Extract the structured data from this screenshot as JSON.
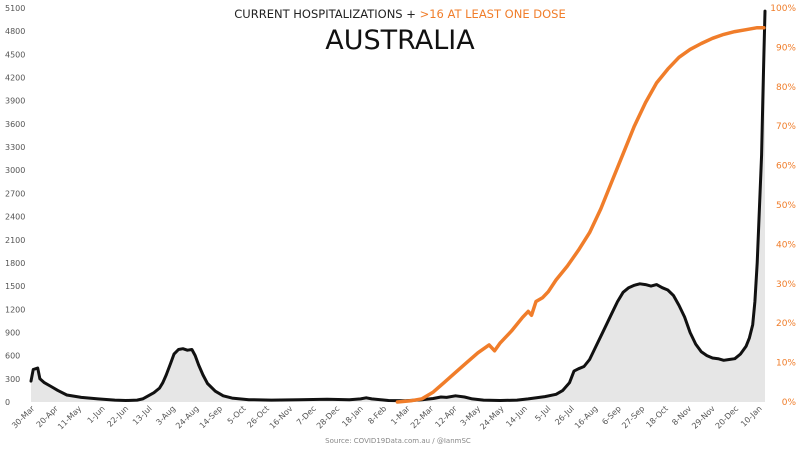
{
  "chart_data": {
    "type": "line",
    "title_part1": "CURRENT HOSPITALIZATIONS + ",
    "title_part2": ">16 AT LEAST ONE DOSE",
    "subtitle": "AUSTRALIA",
    "source": "Source: COVID19Data.com.au / @IanmSC",
    "x_tick_labels": [
      "30-Mar",
      "20-Apr",
      "11-May",
      "1-Jun",
      "22-Jun",
      "13-Jul",
      "3-Aug",
      "24-Aug",
      "14-Sep",
      "5-Oct",
      "26-Oct",
      "16-Nov",
      "7-Dec",
      "28-Dec",
      "18-Jan",
      "8-Feb",
      "1-Mar",
      "22-Mar",
      "12-Apr",
      "3-May",
      "24-May",
      "14-Jun",
      "5-Jul",
      "26-Jul",
      "16-Aug",
      "6-Sep",
      "27-Sep",
      "18-Oct",
      "8-Nov",
      "29-Nov",
      "20-Dec",
      "10-Jan"
    ],
    "x_tick_step_days": 21,
    "x_last_day": 657,
    "y_left": {
      "min": 0,
      "max": 5100,
      "step": 300,
      "ticks": [
        0,
        300,
        600,
        900,
        1200,
        1500,
        1800,
        2100,
        2400,
        2700,
        3000,
        3300,
        3600,
        3900,
        4200,
        4500,
        4800,
        5100
      ]
    },
    "y_right": {
      "min": 0,
      "max": 100,
      "ticks": [
        "0%",
        "10%",
        "20%",
        "30%",
        "40%",
        "50%",
        "60%",
        "70%",
        "80%",
        "90%",
        "100%"
      ]
    },
    "grid": false,
    "colors": {
      "hospital": "#111111",
      "area": "#e6e6e6",
      "dose": "#f07d2a"
    },
    "series": [
      {
        "name": "CURRENT HOSPITALIZATIONS",
        "axis": "left",
        "points": [
          [
            0,
            270
          ],
          [
            2,
            420
          ],
          [
            6,
            440
          ],
          [
            8,
            300
          ],
          [
            12,
            250
          ],
          [
            18,
            200
          ],
          [
            24,
            150
          ],
          [
            32,
            90
          ],
          [
            45,
            60
          ],
          [
            60,
            40
          ],
          [
            75,
            25
          ],
          [
            85,
            20
          ],
          [
            95,
            25
          ],
          [
            100,
            40
          ],
          [
            105,
            80
          ],
          [
            110,
            120
          ],
          [
            115,
            180
          ],
          [
            118,
            250
          ],
          [
            121,
            350
          ],
          [
            125,
            500
          ],
          [
            128,
            620
          ],
          [
            132,
            680
          ],
          [
            136,
            690
          ],
          [
            140,
            670
          ],
          [
            144,
            680
          ],
          [
            147,
            600
          ],
          [
            150,
            480
          ],
          [
            154,
            350
          ],
          [
            158,
            240
          ],
          [
            165,
            140
          ],
          [
            172,
            80
          ],
          [
            180,
            50
          ],
          [
            195,
            30
          ],
          [
            215,
            25
          ],
          [
            240,
            30
          ],
          [
            265,
            35
          ],
          [
            285,
            30
          ],
          [
            295,
            40
          ],
          [
            300,
            55
          ],
          [
            305,
            40
          ],
          [
            320,
            20
          ],
          [
            335,
            15
          ],
          [
            350,
            30
          ],
          [
            360,
            45
          ],
          [
            367,
            65
          ],
          [
            372,
            60
          ],
          [
            380,
            80
          ],
          [
            388,
            65
          ],
          [
            395,
            40
          ],
          [
            405,
            25
          ],
          [
            420,
            20
          ],
          [
            435,
            25
          ],
          [
            445,
            40
          ],
          [
            460,
            70
          ],
          [
            470,
            100
          ],
          [
            476,
            150
          ],
          [
            482,
            250
          ],
          [
            486,
            400
          ],
          [
            490,
            430
          ],
          [
            495,
            460
          ],
          [
            500,
            550
          ],
          [
            505,
            700
          ],
          [
            510,
            850
          ],
          [
            515,
            1000
          ],
          [
            520,
            1150
          ],
          [
            525,
            1300
          ],
          [
            530,
            1420
          ],
          [
            535,
            1480
          ],
          [
            540,
            1510
          ],
          [
            545,
            1530
          ],
          [
            550,
            1520
          ],
          [
            555,
            1500
          ],
          [
            560,
            1520
          ],
          [
            565,
            1480
          ],
          [
            570,
            1450
          ],
          [
            575,
            1380
          ],
          [
            580,
            1250
          ],
          [
            585,
            1100
          ],
          [
            590,
            900
          ],
          [
            595,
            750
          ],
          [
            600,
            650
          ],
          [
            605,
            600
          ],
          [
            610,
            570
          ],
          [
            615,
            560
          ],
          [
            620,
            540
          ],
          [
            625,
            550
          ],
          [
            630,
            560
          ],
          [
            635,
            620
          ],
          [
            640,
            720
          ],
          [
            643,
            830
          ],
          [
            646,
            1000
          ],
          [
            648,
            1300
          ],
          [
            650,
            1800
          ],
          [
            652,
            2500
          ],
          [
            654,
            3200
          ],
          [
            655,
            3900
          ],
          [
            656,
            4500
          ],
          [
            657,
            5060
          ]
        ]
      },
      {
        "name": ">16 AT LEAST ONE DOSE",
        "axis": "right",
        "points": [
          [
            328,
            0
          ],
          [
            340,
            0.3
          ],
          [
            350,
            0.8
          ],
          [
            360,
            2.5
          ],
          [
            370,
            5
          ],
          [
            380,
            7.5
          ],
          [
            390,
            10
          ],
          [
            400,
            12.5
          ],
          [
            410,
            14.5
          ],
          [
            415,
            13
          ],
          [
            420,
            15
          ],
          [
            430,
            18
          ],
          [
            440,
            21.5
          ],
          [
            445,
            23
          ],
          [
            448,
            22
          ],
          [
            452,
            25.5
          ],
          [
            458,
            26.5
          ],
          [
            463,
            28
          ],
          [
            470,
            31
          ],
          [
            480,
            34.5
          ],
          [
            490,
            38.5
          ],
          [
            500,
            43
          ],
          [
            510,
            49
          ],
          [
            520,
            56
          ],
          [
            530,
            63
          ],
          [
            540,
            70
          ],
          [
            550,
            76
          ],
          [
            560,
            81
          ],
          [
            570,
            84.5
          ],
          [
            580,
            87.5
          ],
          [
            590,
            89.5
          ],
          [
            600,
            91
          ],
          [
            610,
            92.3
          ],
          [
            620,
            93.3
          ],
          [
            630,
            94
          ],
          [
            640,
            94.5
          ],
          [
            650,
            95
          ],
          [
            656,
            95
          ]
        ]
      }
    ]
  }
}
